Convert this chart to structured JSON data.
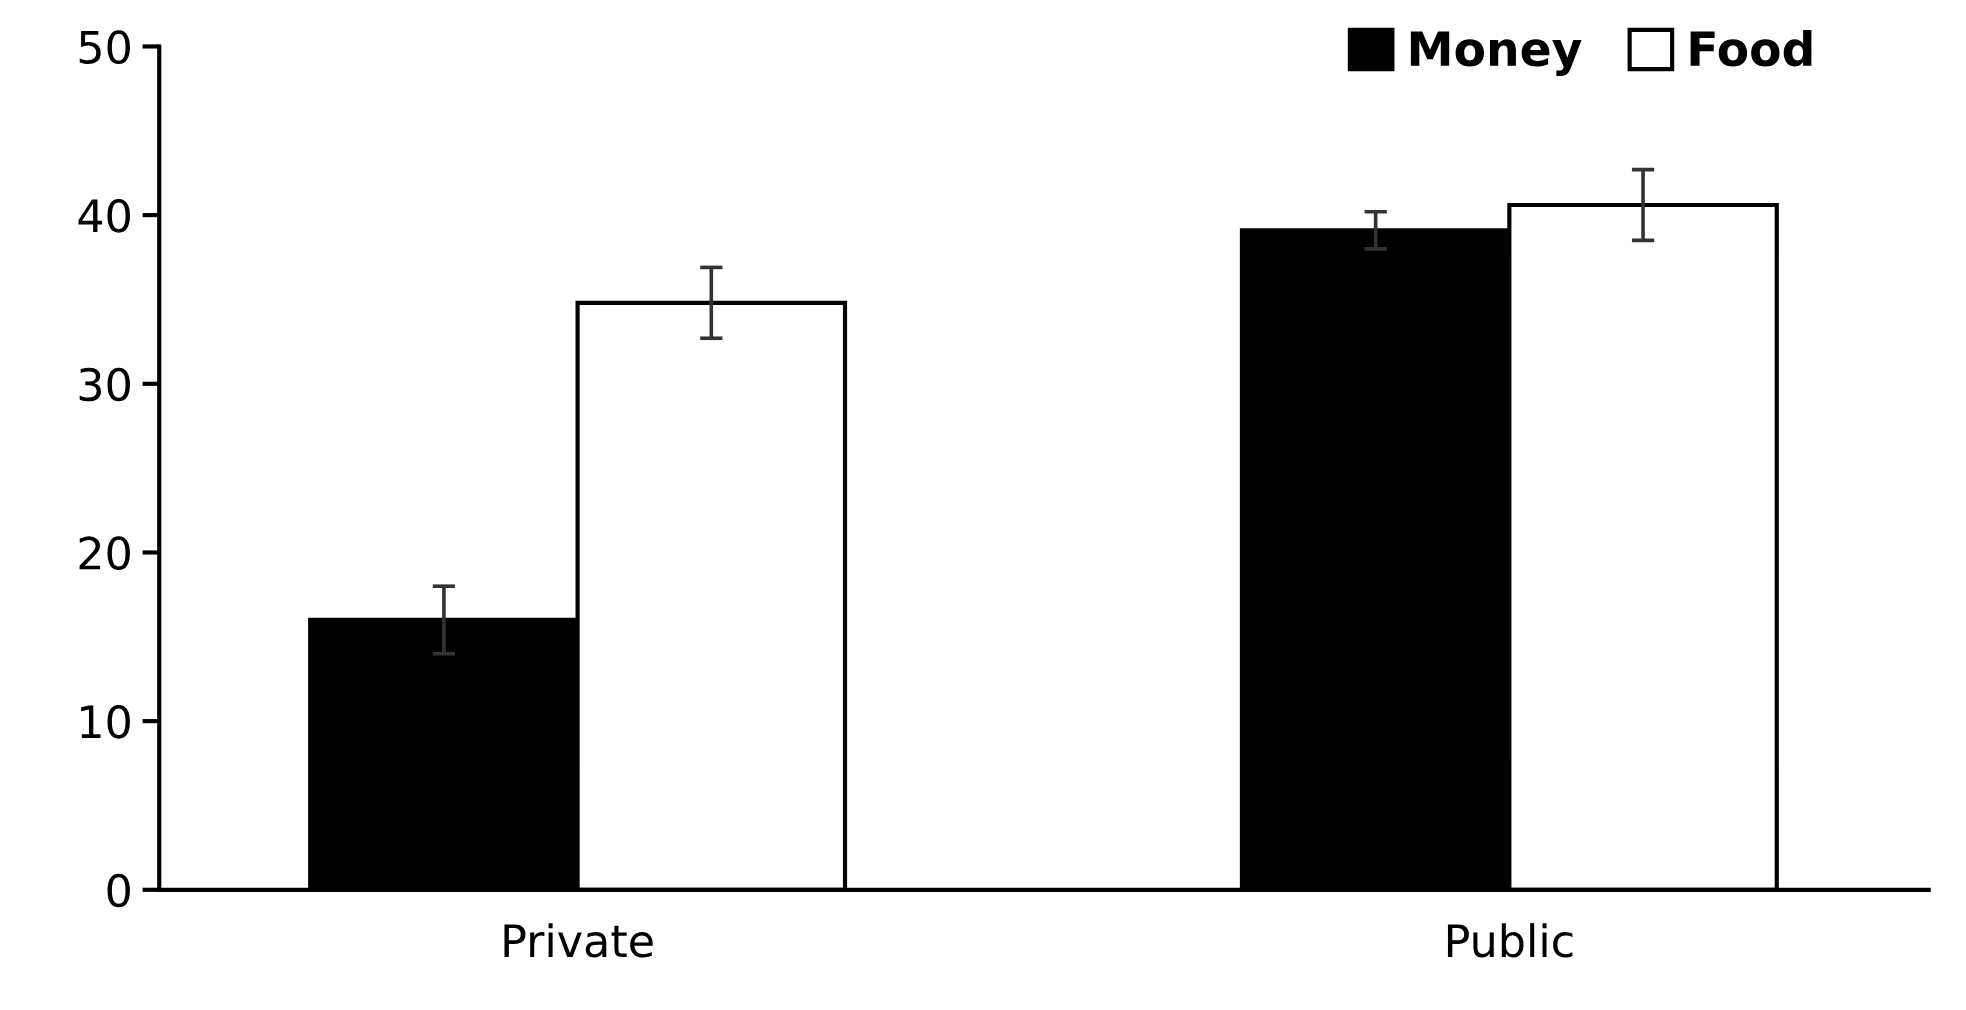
{
  "chart_data": {
    "type": "bar",
    "categories": [
      "Private",
      "Public"
    ],
    "series": [
      {
        "name": "Money",
        "color": "#000000",
        "values": [
          16,
          39.1
        ],
        "errors": [
          2,
          1.1
        ]
      },
      {
        "name": "Food",
        "color": "#ffffff",
        "values": [
          34.8,
          40.6
        ],
        "errors": [
          2.1,
          2.1
        ]
      }
    ],
    "ylim": [
      0,
      50
    ],
    "yticks": [
      0,
      10,
      20,
      30,
      40,
      50
    ],
    "grid": false,
    "legend": "top right"
  }
}
